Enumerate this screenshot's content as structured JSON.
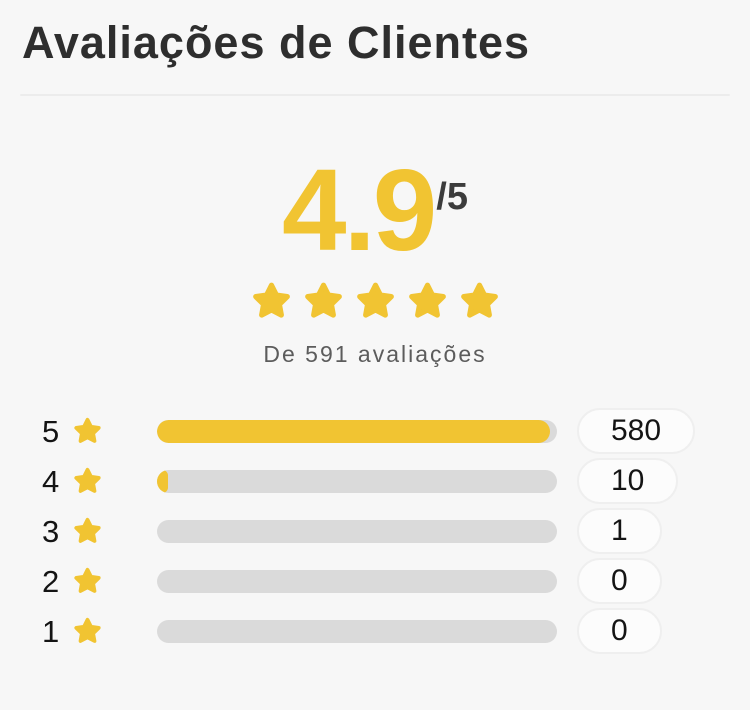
{
  "title": "Avaliações de Clientes",
  "summary": {
    "score": "4.9",
    "denominator": "/5",
    "stars_shown": 5,
    "caption": "De 591 avaliações"
  },
  "breakdown": {
    "total_reviews": 591,
    "rows": [
      {
        "stars": "5",
        "count": "580"
      },
      {
        "stars": "4",
        "count": "10"
      },
      {
        "stars": "3",
        "count": "1"
      },
      {
        "stars": "2",
        "count": "0"
      },
      {
        "stars": "1",
        "count": "0"
      }
    ]
  },
  "icons": {
    "star": "star-icon"
  },
  "colors": {
    "accent_yellow": "#F1C432",
    "bar_track": "#DADADA",
    "heading_text": "#2E2E2E",
    "muted_text": "#5C5C5C",
    "pill_background": "#FCFCFC",
    "pill_border": "#EFEFEF",
    "page_background": "#F7F7F7"
  }
}
